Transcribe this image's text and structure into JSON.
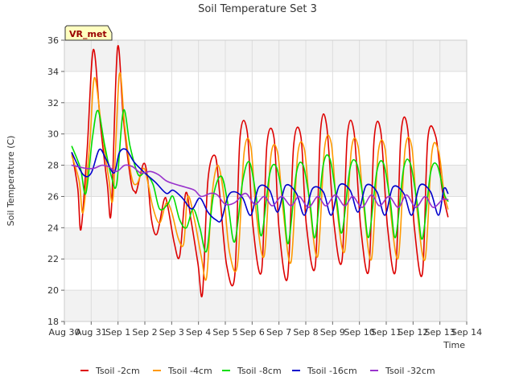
{
  "chart_data": {
    "type": "line",
    "title": "Soil Temperature Set 3",
    "xlabel": "Time",
    "ylabel": "Soil Temperature (C)",
    "ylim": [
      18,
      36
    ],
    "yticks": [
      18,
      20,
      22,
      24,
      26,
      28,
      30,
      32,
      34,
      36
    ],
    "xlim": [
      0,
      15
    ],
    "xticks": [
      {
        "x": 0,
        "label": "Aug 30"
      },
      {
        "x": 1,
        "label": "Aug 31"
      },
      {
        "x": 2,
        "label": "Sep 1"
      },
      {
        "x": 3,
        "label": "Sep 2"
      },
      {
        "x": 4,
        "label": "Sep 3"
      },
      {
        "x": 5,
        "label": "Sep 4"
      },
      {
        "x": 6,
        "label": "Sep 5"
      },
      {
        "x": 7,
        "label": "Sep 6"
      },
      {
        "x": 8,
        "label": "Sep 7"
      },
      {
        "x": 9,
        "label": "Sep 8"
      },
      {
        "x": 10,
        "label": "Sep 9"
      },
      {
        "x": 11,
        "label": "Sep 10"
      },
      {
        "x": 12,
        "label": "Sep 11"
      },
      {
        "x": 13,
        "label": "Sep 12"
      },
      {
        "x": 14,
        "label": "Sep 13"
      },
      {
        "x": 15,
        "label": "Sep 14"
      }
    ],
    "grid": true,
    "alternating_bands": true,
    "annotation": "VR_met",
    "legend_position": "bottom",
    "series": [
      {
        "name": "Tsoil -2cm",
        "color": "#dd0000",
        "x": [
          0.28,
          0.5,
          0.62,
          0.85,
          1.08,
          1.35,
          1.6,
          1.75,
          1.98,
          2.2,
          2.48,
          2.63,
          2.7,
          2.95,
          3.1,
          3.25,
          3.45,
          3.72,
          3.85,
          4.1,
          4.3,
          4.52,
          4.72,
          4.98,
          5.15,
          5.35,
          5.62,
          5.8,
          6.05,
          6.35,
          6.55,
          6.82,
          7.02,
          7.35,
          7.55,
          7.82,
          8.0,
          8.32,
          8.55,
          8.82,
          9.02,
          9.35,
          9.55,
          9.78,
          10.05,
          10.35,
          10.55,
          10.8,
          11.05,
          11.35,
          11.55,
          11.8,
          12.05,
          12.35,
          12.55,
          12.8,
          13.05,
          13.35,
          13.55,
          13.85,
          14.08,
          14.3
        ],
        "y": [
          28.8,
          26.5,
          23.9,
          29.0,
          35.4,
          30.5,
          26.8,
          25.1,
          35.5,
          31.0,
          27.0,
          26.3,
          26.4,
          28.1,
          27.2,
          24.5,
          23.6,
          25.8,
          25.4,
          23.0,
          22.2,
          26.2,
          24.5,
          21.7,
          19.8,
          27.0,
          28.6,
          26.0,
          21.6,
          20.9,
          29.8,
          30.1,
          24.3,
          21.2,
          29.3,
          29.7,
          24.0,
          20.8,
          29.3,
          29.8,
          24.2,
          21.5,
          30.2,
          30.5,
          24.3,
          21.9,
          29.9,
          30.1,
          24.0,
          21.3,
          29.7,
          30.1,
          24.0,
          21.3,
          30.0,
          30.3,
          24.0,
          21.1,
          29.7,
          29.8,
          26.5,
          24.7
        ]
      },
      {
        "name": "Tsoil -4cm",
        "color": "#ff9900",
        "x": [
          0.28,
          0.55,
          0.7,
          0.95,
          1.12,
          1.38,
          1.65,
          1.82,
          2.05,
          2.25,
          2.5,
          2.7,
          2.95,
          3.1,
          3.3,
          3.55,
          3.8,
          4.0,
          4.25,
          4.45,
          4.6,
          4.85,
          5.1,
          5.3,
          5.5,
          5.72,
          5.95,
          6.15,
          6.45,
          6.7,
          6.95,
          7.15,
          7.45,
          7.7,
          7.95,
          8.15,
          8.45,
          8.7,
          8.95,
          9.15,
          9.45,
          9.7,
          9.95,
          10.15,
          10.45,
          10.7,
          10.95,
          11.15,
          11.45,
          11.7,
          11.95,
          12.15,
          12.45,
          12.7,
          12.95,
          13.15,
          13.45,
          13.7,
          13.95,
          14.15,
          14.3
        ],
        "y": [
          28.6,
          27.0,
          25.0,
          29.5,
          33.6,
          30.5,
          27.2,
          26.0,
          33.8,
          30.5,
          27.3,
          26.8,
          27.8,
          27.0,
          25.3,
          24.3,
          25.6,
          25.0,
          23.3,
          23.0,
          26.0,
          24.5,
          22.2,
          20.8,
          26.0,
          28.0,
          26.0,
          22.5,
          21.6,
          28.8,
          29.2,
          25.0,
          22.2,
          28.6,
          28.8,
          25.2,
          21.8,
          28.7,
          29.0,
          25.4,
          22.2,
          29.1,
          29.4,
          25.4,
          22.5,
          29.0,
          29.2,
          25.5,
          22.0,
          28.8,
          29.1,
          25.2,
          22.1,
          29.0,
          29.2,
          25.1,
          22.0,
          28.8,
          28.9,
          26.3,
          25.2
        ]
      },
      {
        "name": "Tsoil -8cm",
        "color": "#00dd00",
        "x": [
          0.28,
          0.6,
          0.8,
          1.05,
          1.25,
          1.5,
          1.75,
          1.95,
          2.2,
          2.45,
          2.75,
          3.0,
          3.3,
          3.55,
          3.85,
          4.05,
          4.3,
          4.55,
          4.8,
          5.05,
          5.3,
          5.55,
          5.85,
          6.1,
          6.35,
          6.65,
          6.9,
          7.15,
          7.35,
          7.65,
          7.9,
          8.15,
          8.35,
          8.65,
          8.9,
          9.15,
          9.35,
          9.65,
          9.9,
          10.15,
          10.35,
          10.65,
          10.9,
          11.15,
          11.35,
          11.65,
          11.9,
          12.15,
          12.35,
          12.65,
          12.9,
          13.15,
          13.35,
          13.65,
          13.9,
          14.15,
          14.3
        ],
        "y": [
          29.2,
          27.8,
          26.2,
          29.8,
          31.5,
          29.3,
          27.3,
          26.8,
          31.5,
          29.2,
          27.4,
          27.5,
          26.8,
          25.2,
          25.5,
          26.0,
          24.5,
          24.0,
          25.2,
          24.0,
          22.5,
          26.0,
          27.3,
          25.5,
          23.1,
          27.0,
          28.2,
          26.0,
          23.5,
          27.4,
          27.9,
          25.8,
          23.0,
          27.5,
          28.0,
          25.7,
          23.4,
          28.0,
          28.4,
          25.8,
          23.7,
          27.8,
          28.1,
          25.8,
          23.4,
          27.6,
          28.1,
          25.7,
          23.4,
          27.8,
          28.1,
          25.6,
          23.3,
          27.5,
          28.0,
          26.2,
          25.7
        ]
      },
      {
        "name": "Tsoil -16cm",
        "color": "#0000cc",
        "x": [
          0.28,
          0.7,
          1.0,
          1.3,
          1.55,
          1.85,
          2.05,
          2.3,
          2.6,
          3.0,
          3.4,
          3.8,
          4.05,
          4.4,
          4.75,
          5.05,
          5.35,
          5.65,
          5.85,
          6.1,
          6.35,
          6.65,
          6.95,
          7.25,
          7.65,
          7.95,
          8.25,
          8.65,
          8.95,
          9.25,
          9.65,
          9.95,
          10.25,
          10.65,
          10.95,
          11.25,
          11.65,
          11.95,
          12.25,
          12.65,
          12.95,
          13.25,
          13.65,
          13.95,
          14.15,
          14.3
        ],
        "y": [
          28.8,
          27.4,
          27.5,
          29.0,
          28.4,
          27.5,
          28.8,
          29.0,
          28.2,
          27.5,
          26.9,
          26.2,
          26.4,
          25.9,
          25.2,
          25.9,
          25.0,
          24.5,
          24.5,
          26.0,
          26.3,
          25.9,
          24.8,
          26.6,
          26.4,
          25.0,
          26.7,
          26.2,
          24.8,
          26.5,
          26.3,
          24.8,
          26.7,
          26.4,
          25.0,
          26.7,
          26.3,
          24.8,
          26.6,
          26.2,
          24.8,
          26.7,
          26.3,
          24.8,
          26.5,
          26.2
        ]
      },
      {
        "name": "Tsoil -32cm",
        "color": "#9933cc",
        "x": [
          0.28,
          0.8,
          1.1,
          1.4,
          1.65,
          1.95,
          2.25,
          2.55,
          2.85,
          3.2,
          3.5,
          3.8,
          4.1,
          4.5,
          4.85,
          5.1,
          5.45,
          5.7,
          6.0,
          6.35,
          6.75,
          7.1,
          7.45,
          7.75,
          8.1,
          8.45,
          8.75,
          9.1,
          9.45,
          9.75,
          10.1,
          10.45,
          10.75,
          11.1,
          11.45,
          11.75,
          12.1,
          12.45,
          12.75,
          13.1,
          13.45,
          13.75,
          14.1,
          14.3
        ],
        "y": [
          28.0,
          27.8,
          27.8,
          28.0,
          27.9,
          27.6,
          28.0,
          27.9,
          27.5,
          27.6,
          27.4,
          27.0,
          26.8,
          26.6,
          26.4,
          26.0,
          26.2,
          26.1,
          25.5,
          25.6,
          26.2,
          25.5,
          26.0,
          25.4,
          26.0,
          25.4,
          26.0,
          25.3,
          26.0,
          25.4,
          26.1,
          25.4,
          26.0,
          25.3,
          26.1,
          25.4,
          26.0,
          25.3,
          26.1,
          25.3,
          26.0,
          25.3,
          25.8,
          25.8
        ]
      }
    ]
  }
}
